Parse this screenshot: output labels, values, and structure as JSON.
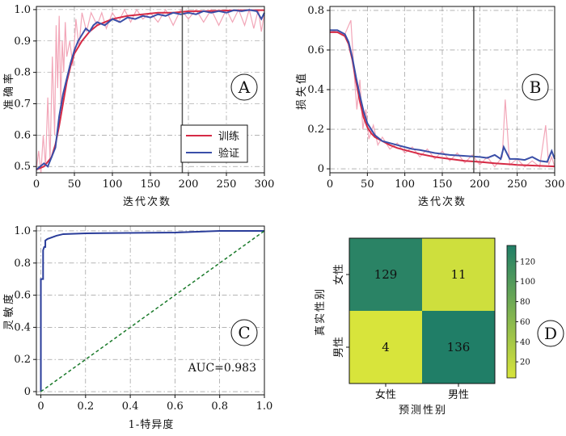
{
  "chart_data": [
    {
      "panel": "A",
      "type": "line",
      "xlabel": "迭代次数",
      "ylabel": "准确率",
      "xlim": [
        0,
        300
      ],
      "ylim": [
        0.48,
        1.01
      ],
      "xticks": [
        0,
        50,
        100,
        150,
        200,
        250,
        300
      ],
      "yticks": [
        0.5,
        0.6,
        0.7,
        0.8,
        0.9,
        1.0
      ],
      "ytick_labels": [
        "0.5",
        "0.6",
        "0.7",
        "0.8",
        "0.9",
        "1.0"
      ],
      "vline_x": 192,
      "grid": true,
      "legend_position": "bottom-right",
      "series": [
        {
          "name": "训练",
          "color": "#d62a45",
          "x": [
            0,
            10,
            20,
            25,
            30,
            35,
            40,
            45,
            50,
            60,
            70,
            80,
            90,
            100,
            120,
            140,
            160,
            180,
            200,
            220,
            250,
            280,
            300
          ],
          "y": [
            0.49,
            0.5,
            0.53,
            0.57,
            0.63,
            0.7,
            0.77,
            0.82,
            0.86,
            0.9,
            0.93,
            0.95,
            0.96,
            0.97,
            0.98,
            0.985,
            0.99,
            0.99,
            0.995,
            0.995,
            0.997,
            0.998,
            0.998
          ]
        },
        {
          "name": "验证",
          "color": "#3a4fa8",
          "x": [
            0,
            10,
            15,
            20,
            25,
            30,
            35,
            40,
            45,
            50,
            55,
            60,
            65,
            70,
            75,
            80,
            90,
            100,
            110,
            120,
            130,
            140,
            150,
            160,
            170,
            180,
            190,
            200,
            210,
            220,
            230,
            240,
            250,
            260,
            270,
            280,
            290,
            296,
            300
          ],
          "y": [
            0.49,
            0.51,
            0.5,
            0.53,
            0.56,
            0.66,
            0.73,
            0.78,
            0.83,
            0.87,
            0.9,
            0.92,
            0.94,
            0.93,
            0.95,
            0.96,
            0.95,
            0.97,
            0.96,
            0.975,
            0.97,
            0.98,
            0.975,
            0.985,
            0.98,
            0.99,
            0.985,
            0.99,
            0.985,
            0.995,
            0.99,
            0.995,
            0.99,
            0.998,
            0.995,
            0.999,
            0.995,
            0.97,
            0.99
          ]
        }
      ],
      "raw_color": "#f2a6b8",
      "raw_x": [
        0,
        3,
        6,
        9,
        12,
        15,
        18,
        21,
        24,
        26,
        28,
        30,
        32,
        34,
        36,
        38,
        40,
        44,
        48,
        52,
        56,
        60,
        66,
        72,
        80,
        86,
        92,
        100,
        108,
        116,
        124,
        132,
        140,
        150,
        160,
        170,
        180,
        190,
        200,
        210,
        220,
        230,
        240,
        250,
        258,
        266,
        274,
        280,
        286,
        292,
        296,
        300
      ],
      "raw_y": [
        0.49,
        0.55,
        0.48,
        0.6,
        0.5,
        0.72,
        0.52,
        0.85,
        0.6,
        0.95,
        0.75,
        0.98,
        0.7,
        0.9,
        0.8,
        0.96,
        0.85,
        0.9,
        0.82,
        0.97,
        0.88,
        0.99,
        0.93,
        0.99,
        0.95,
        0.99,
        0.94,
        0.99,
        0.96,
        1.0,
        0.96,
        1.0,
        0.97,
        0.99,
        0.96,
        1.0,
        0.95,
        1.0,
        0.97,
        1.0,
        0.96,
        1.0,
        0.95,
        1.0,
        0.96,
        1.0,
        0.95,
        1.0,
        0.94,
        1.0,
        0.93,
        0.99
      ]
    },
    {
      "panel": "B",
      "type": "line",
      "xlabel": "迭代次数",
      "ylabel": "损失值",
      "xlim": [
        0,
        300
      ],
      "ylim": [
        -0.02,
        0.82
      ],
      "xticks": [
        0,
        50,
        100,
        150,
        200,
        250,
        300
      ],
      "yticks": [
        0,
        0.2,
        0.4,
        0.6,
        0.8
      ],
      "ytick_labels": [
        "0",
        "0.2",
        "0.4",
        "0.6",
        "0.8"
      ],
      "vline_x": 192,
      "grid": true,
      "series": [
        {
          "name": "训练",
          "color": "#d62a45",
          "x": [
            0,
            10,
            20,
            25,
            30,
            35,
            40,
            45,
            50,
            55,
            60,
            70,
            80,
            90,
            100,
            120,
            140,
            160,
            180,
            200,
            220,
            250,
            280,
            300
          ],
          "y": [
            0.69,
            0.69,
            0.67,
            0.63,
            0.55,
            0.44,
            0.34,
            0.26,
            0.21,
            0.18,
            0.16,
            0.14,
            0.12,
            0.105,
            0.095,
            0.075,
            0.06,
            0.05,
            0.04,
            0.035,
            0.028,
            0.02,
            0.015,
            0.012
          ]
        },
        {
          "name": "验证",
          "color": "#3a4fa8",
          "x": [
            0,
            10,
            20,
            25,
            30,
            35,
            40,
            45,
            50,
            55,
            60,
            70,
            80,
            90,
            100,
            110,
            120,
            140,
            160,
            180,
            200,
            210,
            220,
            228,
            232,
            240,
            250,
            260,
            270,
            280,
            290,
            296,
            300
          ],
          "y": [
            0.7,
            0.7,
            0.68,
            0.64,
            0.56,
            0.46,
            0.37,
            0.29,
            0.23,
            0.2,
            0.17,
            0.14,
            0.13,
            0.12,
            0.11,
            0.1,
            0.095,
            0.08,
            0.07,
            0.065,
            0.06,
            0.055,
            0.07,
            0.05,
            0.11,
            0.05,
            0.05,
            0.045,
            0.06,
            0.04,
            0.035,
            0.09,
            0.05
          ]
        }
      ],
      "raw_color": "#f2a6b8",
      "raw_x": [
        0,
        10,
        20,
        28,
        32,
        36,
        40,
        44,
        48,
        52,
        58,
        64,
        70,
        80,
        90,
        100,
        110,
        120,
        130,
        140,
        150,
        160,
        170,
        180,
        190,
        200,
        210,
        220,
        230,
        234,
        240,
        250,
        260,
        270,
        280,
        288,
        292,
        296,
        300
      ],
      "raw_y": [
        0.69,
        0.7,
        0.68,
        0.75,
        0.5,
        0.3,
        0.45,
        0.2,
        0.3,
        0.15,
        0.22,
        0.12,
        0.16,
        0.1,
        0.13,
        0.08,
        0.11,
        0.06,
        0.1,
        0.05,
        0.09,
        0.04,
        0.08,
        0.03,
        0.07,
        0.02,
        0.06,
        0.01,
        0.06,
        0.35,
        0.02,
        0.05,
        0.01,
        0.04,
        0.01,
        0.22,
        0.02,
        0.06,
        0.01
      ]
    },
    {
      "panel": "C",
      "type": "line",
      "xlabel": "1-特异度",
      "ylabel": "灵敏度",
      "xlim": [
        -0.02,
        1.0
      ],
      "ylim": [
        -0.02,
        1.03
      ],
      "xticks": [
        0,
        0.2,
        0.4,
        0.6,
        0.8,
        1.0
      ],
      "xtick_labels": [
        "0",
        "0.2",
        "0.4",
        "0.6",
        "0.8",
        "1.0"
      ],
      "yticks": [
        0,
        0.2,
        0.4,
        0.6,
        0.8,
        1.0
      ],
      "ytick_labels": [
        "0",
        "0.2",
        "0.4",
        "0.6",
        "0.8",
        "1.0"
      ],
      "grid": true,
      "annotation": "AUC=0.983",
      "series": [
        {
          "color": "#2a3d9a",
          "x": [
            0,
            0,
            0.01,
            0.01,
            0.01,
            0.015,
            0.02,
            0.02,
            0.03,
            0.05,
            0.07,
            0.1,
            0.2,
            0.6,
            0.7,
            0.8,
            1.0
          ],
          "y": [
            0,
            0.7,
            0.7,
            0.85,
            0.88,
            0.9,
            0.9,
            0.94,
            0.95,
            0.96,
            0.97,
            0.98,
            0.985,
            0.99,
            0.995,
            1.0,
            1.0
          ]
        },
        {
          "color": "#1a7a2a",
          "dashed": true,
          "x": [
            0,
            1
          ],
          "y": [
            0,
            1
          ]
        }
      ]
    },
    {
      "panel": "D",
      "type": "heatmap",
      "xlabel": "预测性别",
      "ylabel": "真实性别",
      "col_labels": [
        "女性",
        "男性"
      ],
      "row_labels": [
        "女性",
        "男性"
      ],
      "values": [
        [
          129,
          11
        ],
        [
          4,
          136
        ]
      ],
      "colorbar_range": [
        4,
        136
      ],
      "colorbar_ticks": [
        20,
        40,
        60,
        80,
        100,
        120
      ],
      "colormap": [
        "#d8e43b",
        "#207e67"
      ]
    }
  ],
  "panel_labels": [
    "A",
    "B",
    "C",
    "D"
  ]
}
